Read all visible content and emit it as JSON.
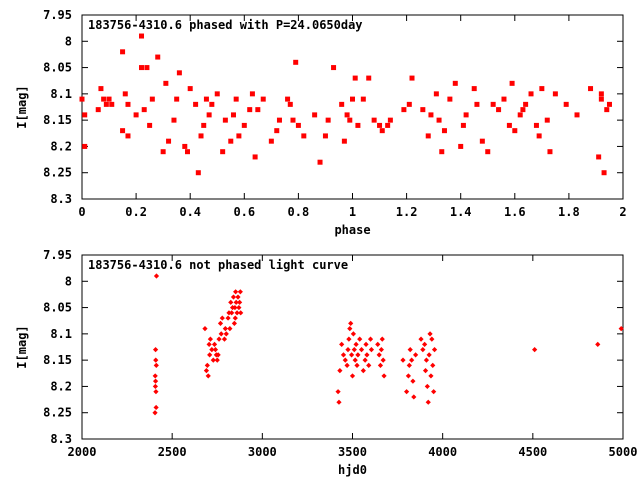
{
  "chart_data": [
    {
      "type": "scatter",
      "title": "183756-4310.6 phased with P=24.0650day",
      "xlabel": "phase",
      "ylabel": "I[mag]",
      "xlim": [
        0,
        2
      ],
      "ylim": [
        7.95,
        8.3
      ],
      "y_inverted": true,
      "xticks": [
        "0",
        "0.2",
        "0.4",
        "0.6",
        "0.8",
        "1",
        "1.2",
        "1.4",
        "1.6",
        "1.8",
        "2"
      ],
      "yticks": [
        "7.95",
        "8",
        "8.05",
        "8.1",
        "8.15",
        "8.2",
        "8.25",
        "8.3"
      ],
      "marker_color": "#ff0000",
      "x": [
        0.0,
        0.01,
        0.01,
        0.06,
        0.07,
        0.08,
        0.09,
        0.1,
        0.11,
        0.15,
        0.15,
        0.16,
        0.17,
        0.17,
        0.2,
        0.22,
        0.22,
        0.23,
        0.24,
        0.25,
        0.26,
        0.28,
        0.3,
        0.31,
        0.32,
        0.34,
        0.35,
        0.36,
        0.38,
        0.39,
        0.4,
        0.42,
        0.43,
        0.44,
        0.45,
        0.46,
        0.47,
        0.48,
        0.5,
        0.52,
        0.53,
        0.55,
        0.56,
        0.57,
        0.58,
        0.6,
        0.62,
        0.63,
        0.64,
        0.65,
        0.67,
        0.7,
        0.72,
        0.73,
        0.76,
        0.77,
        0.78,
        0.79,
        0.8,
        0.82,
        0.86,
        0.88,
        0.9,
        0.91,
        0.93,
        0.96,
        0.97,
        0.98,
        0.99,
        1.0,
        1.01,
        1.02,
        1.04,
        1.06,
        1.08,
        1.1,
        1.11,
        1.13,
        1.14,
        1.19,
        1.21,
        1.22,
        1.26,
        1.28,
        1.29,
        1.31,
        1.32,
        1.33,
        1.34,
        1.36,
        1.38,
        1.4,
        1.41,
        1.42,
        1.45,
        1.46,
        1.48,
        1.5,
        1.52,
        1.54,
        1.56,
        1.58,
        1.59,
        1.6,
        1.62,
        1.63,
        1.64,
        1.66,
        1.68,
        1.69,
        1.7,
        1.72,
        1.73,
        1.75,
        1.79,
        1.83,
        1.88,
        1.91,
        1.92,
        1.92,
        1.93,
        1.94,
        1.95
      ],
      "y": [
        8.11,
        8.14,
        8.2,
        8.13,
        8.09,
        8.11,
        8.12,
        8.11,
        8.12,
        8.02,
        8.17,
        8.1,
        8.12,
        8.18,
        8.14,
        7.99,
        8.05,
        8.13,
        8.05,
        8.16,
        8.11,
        8.03,
        8.21,
        8.08,
        8.19,
        8.15,
        8.11,
        8.06,
        8.2,
        8.21,
        8.09,
        8.12,
        8.25,
        8.18,
        8.16,
        8.11,
        8.14,
        8.12,
        8.1,
        8.21,
        8.15,
        8.19,
        8.14,
        8.11,
        8.18,
        8.16,
        8.13,
        8.1,
        8.22,
        8.13,
        8.11,
        8.19,
        8.17,
        8.15,
        8.11,
        8.12,
        8.15,
        8.04,
        8.16,
        8.18,
        8.14,
        8.23,
        8.18,
        8.15,
        8.05,
        8.12,
        8.19,
        8.14,
        8.15,
        8.11,
        8.07,
        8.16,
        8.11,
        8.07,
        8.15,
        8.16,
        8.17,
        8.16,
        8.15,
        8.13,
        8.12,
        8.07,
        8.13,
        8.18,
        8.14,
        8.1,
        8.15,
        8.21,
        8.17,
        8.11,
        8.08,
        8.2,
        8.16,
        8.14,
        8.09,
        8.12,
        8.19,
        8.21,
        8.12,
        8.13,
        8.11,
        8.16,
        8.08,
        8.17,
        8.14,
        8.13,
        8.12,
        8.1,
        8.16,
        8.18,
        8.09,
        8.15,
        8.21,
        8.1,
        8.12,
        8.14,
        8.09,
        8.22,
        8.1,
        8.11,
        8.25,
        8.13,
        8.12
      ]
    },
    {
      "type": "scatter",
      "title": "183756-4310.6 not phased light curve",
      "xlabel": "hjd0",
      "ylabel": "I[mag]",
      "xlim": [
        2000,
        5000
      ],
      "ylim": [
        7.95,
        8.3
      ],
      "y_inverted": true,
      "xticks": [
        "2000",
        "2500",
        "3000",
        "3500",
        "4000",
        "4500",
        "5000"
      ],
      "yticks": [
        "7.95",
        "8",
        "8.05",
        "8.1",
        "8.15",
        "8.2",
        "8.25",
        "8.3"
      ],
      "marker_color": "#ff0000",
      "x": [
        2405,
        2406,
        2407,
        2408,
        2408,
        2409,
        2410,
        2411,
        2412,
        2413,
        2682,
        2690,
        2695,
        2700,
        2705,
        2708,
        2712,
        2720,
        2728,
        2735,
        2740,
        2745,
        2750,
        2755,
        2760,
        2768,
        2772,
        2778,
        2790,
        2795,
        2800,
        2810,
        2815,
        2820,
        2825,
        2830,
        2835,
        2840,
        2845,
        2848,
        2850,
        2852,
        2855,
        2860,
        2865,
        2870,
        2874,
        2878,
        2880,
        3420,
        3425,
        3430,
        3440,
        3450,
        3460,
        3470,
        3475,
        3480,
        3485,
        3490,
        3495,
        3500,
        3505,
        3510,
        3515,
        3520,
        3525,
        3530,
        3540,
        3550,
        3560,
        3570,
        3575,
        3580,
        3590,
        3600,
        3605,
        3640,
        3648,
        3655,
        3660,
        3665,
        3670,
        3675,
        3780,
        3800,
        3810,
        3815,
        3820,
        3828,
        3835,
        3840,
        3850,
        3880,
        3890,
        3900,
        3905,
        3910,
        3915,
        3920,
        3925,
        3930,
        3935,
        3940,
        3945,
        3950,
        3955,
        4510,
        4860,
        4990
      ],
      "y": [
        8.25,
        8.18,
        8.2,
        8.13,
        8.19,
        8.15,
        8.21,
        8.24,
        8.16,
        7.99,
        8.09,
        8.17,
        8.16,
        8.18,
        8.12,
        8.14,
        8.11,
        8.13,
        8.15,
        8.12,
        8.13,
        8.14,
        8.15,
        8.14,
        8.11,
        8.08,
        8.1,
        8.07,
        8.11,
        8.09,
        8.1,
        8.07,
        8.06,
        8.09,
        8.04,
        8.06,
        8.05,
        8.03,
        8.08,
        8.05,
        8.07,
        8.02,
        8.04,
        8.06,
        8.03,
        8.05,
        8.04,
        8.02,
        8.06,
        8.21,
        8.23,
        8.17,
        8.12,
        8.14,
        8.15,
        8.16,
        8.13,
        8.11,
        8.09,
        8.08,
        8.14,
        8.18,
        8.1,
        8.13,
        8.15,
        8.12,
        8.16,
        8.14,
        8.11,
        8.13,
        8.17,
        8.15,
        8.12,
        8.14,
        8.16,
        8.11,
        8.13,
        8.12,
        8.14,
        8.16,
        8.13,
        8.11,
        8.15,
        8.18,
        8.15,
        8.21,
        8.18,
        8.16,
        8.13,
        8.15,
        8.19,
        8.22,
        8.14,
        8.11,
        8.13,
        8.12,
        8.17,
        8.15,
        8.2,
        8.23,
        8.14,
        8.1,
        8.18,
        8.11,
        8.16,
        8.21,
        8.13,
        8.13,
        8.12,
        8.09
      ]
    }
  ]
}
